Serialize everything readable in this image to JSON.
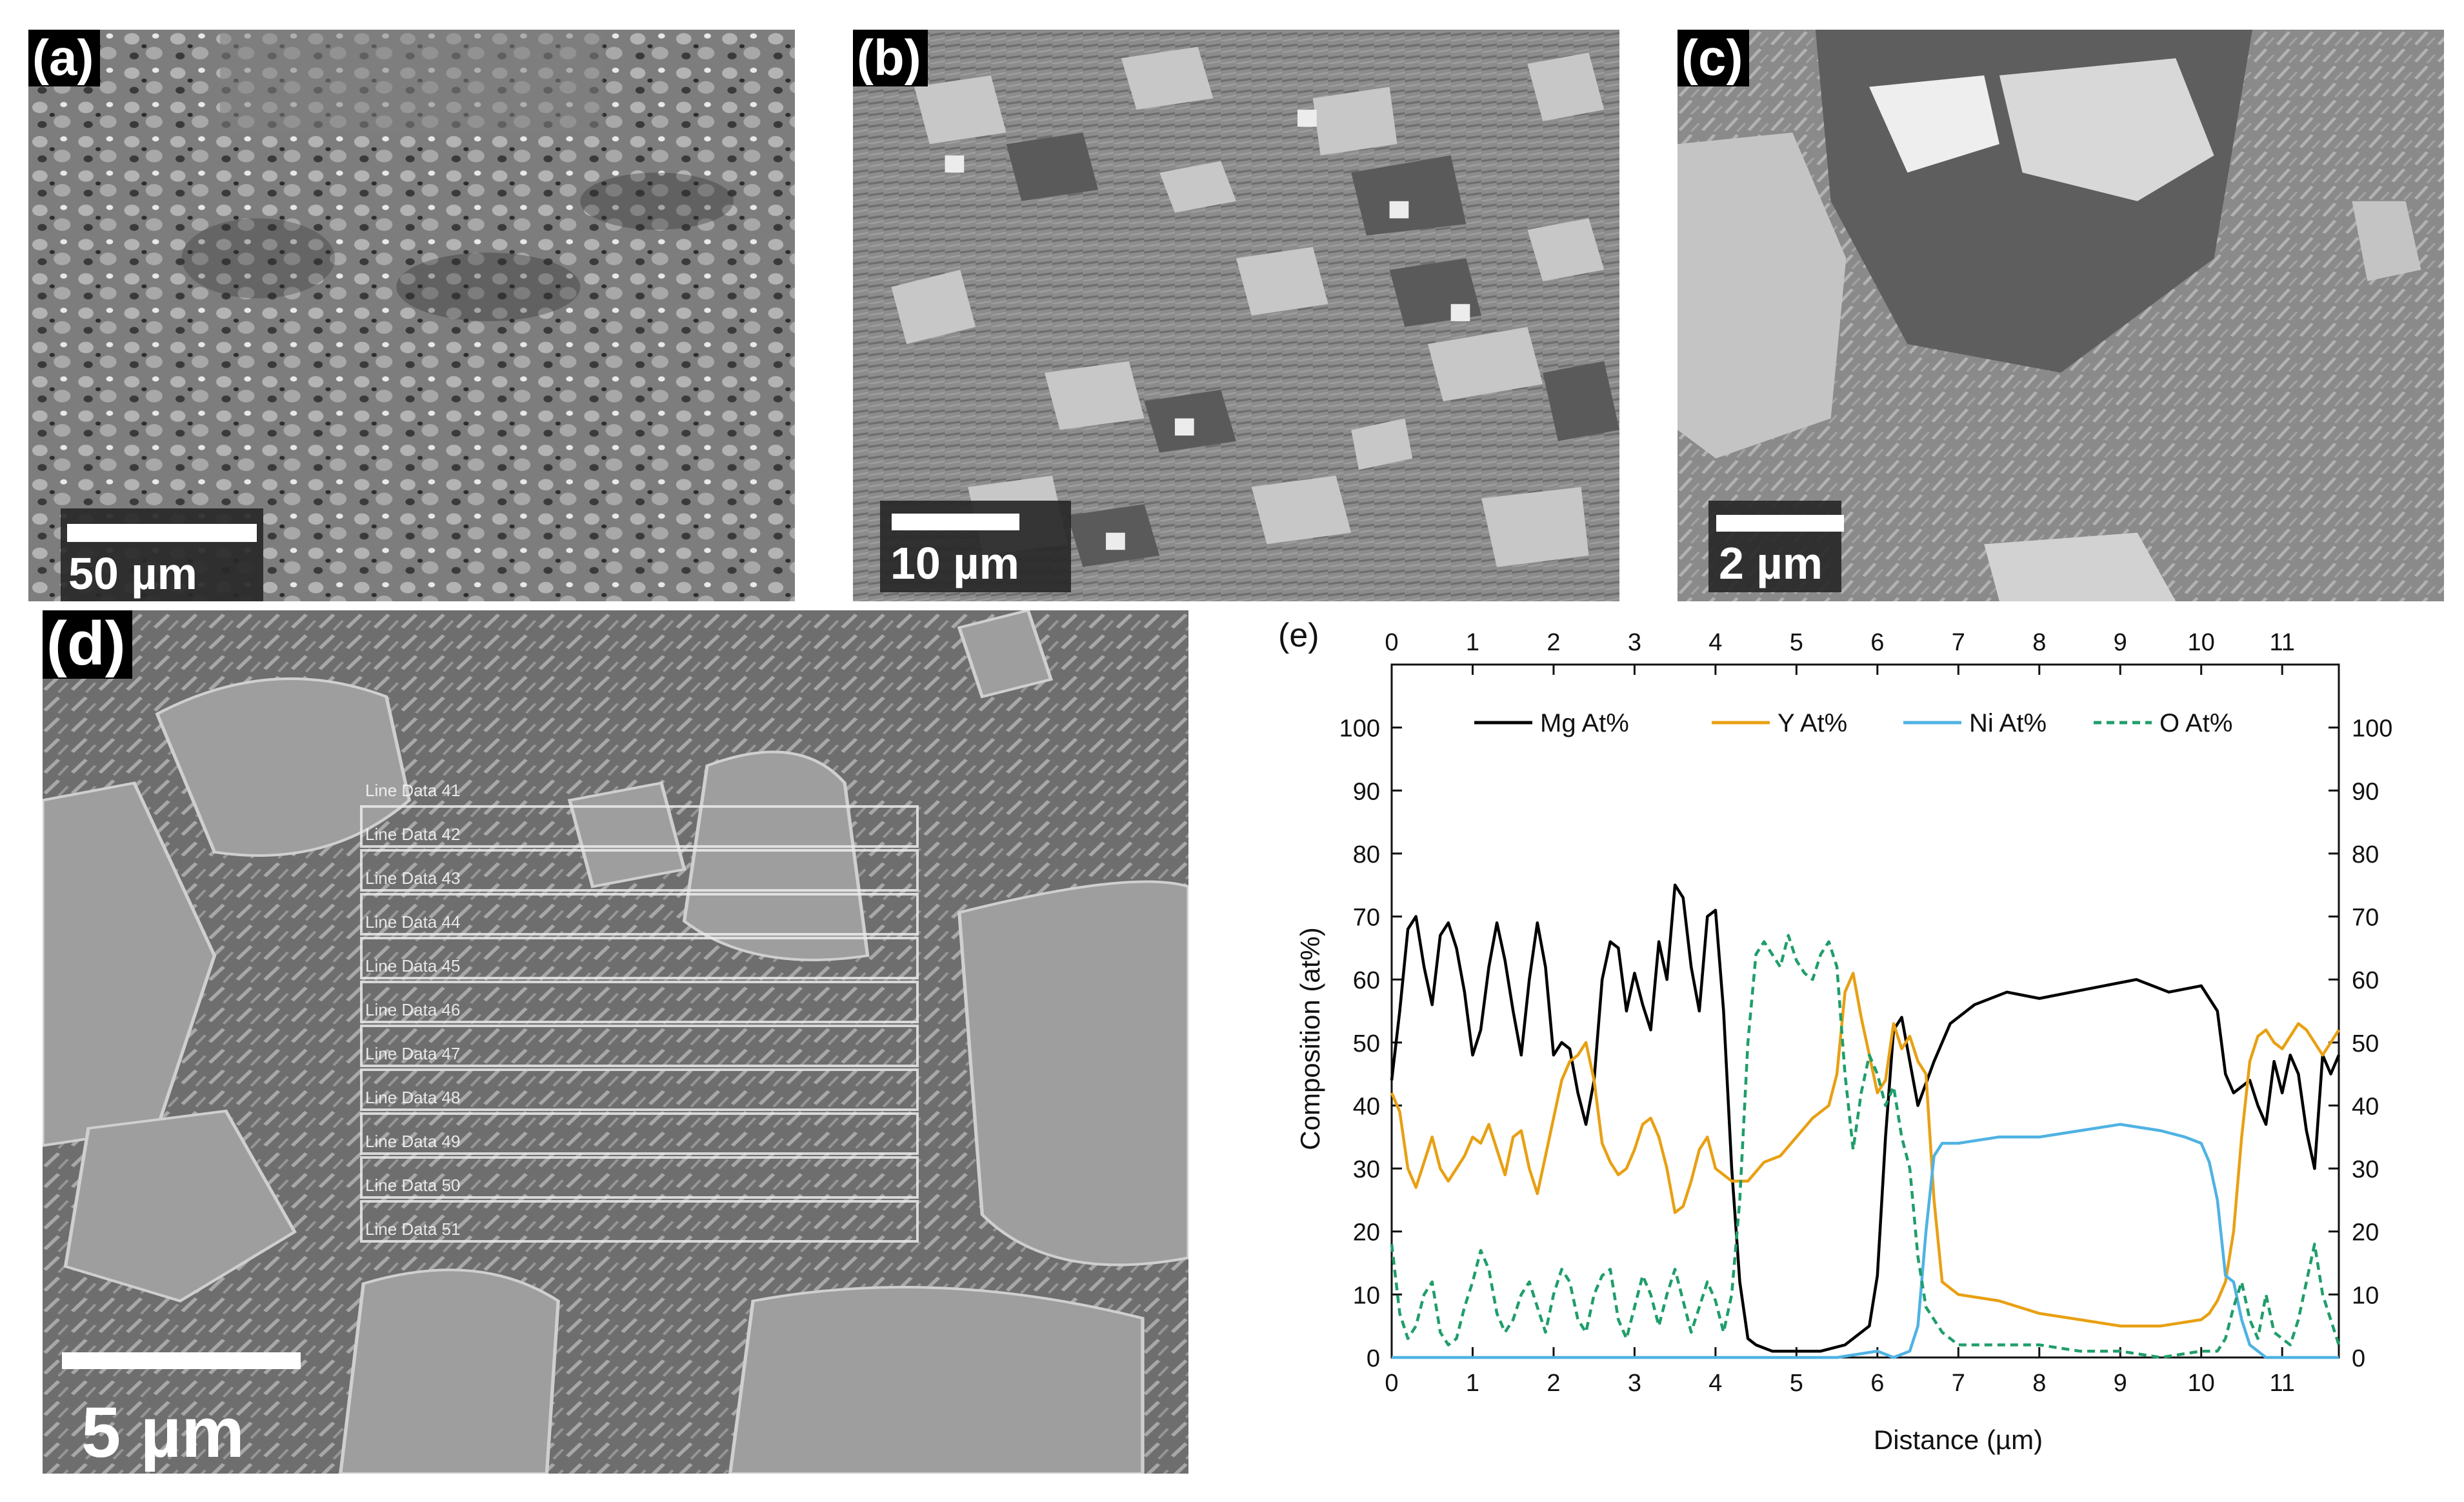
{
  "panels": {
    "a": {
      "label": "(a)",
      "scale": "50 µm"
    },
    "b": {
      "label": "(b)",
      "scale": "10 µm"
    },
    "c": {
      "label": "(c)",
      "scale": "2 µm"
    },
    "d": {
      "label": "(d)",
      "scale": "5 µm",
      "line_top_label": "Line Data 41",
      "line_labels": [
        "Line Data 42",
        "Line Data 43",
        "Line Data 44",
        "Line Data 45",
        "Line Data 46",
        "Line Data 47",
        "Line Data 48",
        "Line Data 49",
        "Line Data 50",
        "Line Data 51"
      ]
    },
    "e": {
      "label": "(e)"
    }
  },
  "colors": {
    "mg": "#000000",
    "y": "#e8a013",
    "ni": "#4fb2e3",
    "o": "#1f9e6a"
  },
  "chart_data": {
    "type": "line",
    "xlabel": "Distance (µm)",
    "ylabel": "Composition (at%)",
    "xlim": [
      0,
      11.7
    ],
    "ylim": [
      0,
      110
    ],
    "xticks": [
      0,
      1,
      2,
      3,
      4,
      5,
      6,
      7,
      8,
      9,
      10,
      11
    ],
    "yticks": [
      0,
      10,
      20,
      30,
      40,
      50,
      60,
      70,
      80,
      90,
      100
    ],
    "legend": "top",
    "grid": false,
    "series": [
      {
        "name": "Mg At%",
        "style": "solid",
        "x": [
          0,
          0.1,
          0.2,
          0.3,
          0.4,
          0.5,
          0.6,
          0.7,
          0.8,
          0.9,
          1.0,
          1.1,
          1.2,
          1.3,
          1.4,
          1.5,
          1.6,
          1.7,
          1.8,
          1.9,
          2.0,
          2.1,
          2.2,
          2.3,
          2.4,
          2.5,
          2.6,
          2.7,
          2.8,
          2.9,
          3.0,
          3.1,
          3.2,
          3.3,
          3.4,
          3.5,
          3.6,
          3.7,
          3.8,
          3.9,
          4.0,
          4.1,
          4.2,
          4.3,
          4.4,
          4.5,
          4.7,
          5.0,
          5.3,
          5.6,
          5.9,
          6.0,
          6.1,
          6.2,
          6.3,
          6.5,
          6.7,
          6.9,
          7.2,
          7.6,
          8.0,
          8.4,
          8.8,
          9.2,
          9.6,
          10.0,
          10.2,
          10.3,
          10.4,
          10.5,
          10.6,
          10.7,
          10.8,
          10.9,
          11.0,
          11.1,
          11.2,
          11.3,
          11.4,
          11.5,
          11.6,
          11.7
        ],
        "y": [
          44,
          55,
          68,
          70,
          62,
          56,
          67,
          69,
          65,
          58,
          48,
          52,
          62,
          69,
          63,
          55,
          48,
          60,
          69,
          62,
          48,
          50,
          49,
          42,
          37,
          44,
          60,
          66,
          65,
          55,
          61,
          56,
          52,
          66,
          60,
          75,
          73,
          62,
          55,
          70,
          71,
          55,
          30,
          12,
          3,
          2,
          1,
          1,
          1,
          2,
          5,
          13,
          35,
          52,
          54,
          40,
          47,
          53,
          56,
          58,
          57,
          58,
          59,
          60,
          58,
          59,
          55,
          45,
          42,
          43,
          44,
          40,
          37,
          47,
          42,
          48,
          45,
          36,
          30,
          48,
          45,
          48
        ]
      },
      {
        "name": "Y At%",
        "style": "solid",
        "x": [
          0,
          0.1,
          0.2,
          0.3,
          0.4,
          0.5,
          0.6,
          0.7,
          0.8,
          0.9,
          1.0,
          1.1,
          1.2,
          1.3,
          1.4,
          1.5,
          1.6,
          1.7,
          1.8,
          1.9,
          2.0,
          2.1,
          2.2,
          2.3,
          2.4,
          2.5,
          2.6,
          2.7,
          2.8,
          2.9,
          3.0,
          3.1,
          3.2,
          3.3,
          3.4,
          3.5,
          3.6,
          3.7,
          3.8,
          3.9,
          4.0,
          4.2,
          4.4,
          4.6,
          4.8,
          5.0,
          5.2,
          5.4,
          5.5,
          5.6,
          5.7,
          5.8,
          5.9,
          6.0,
          6.1,
          6.2,
          6.3,
          6.4,
          6.5,
          6.6,
          6.7,
          6.8,
          6.9,
          7.0,
          7.5,
          8.0,
          8.5,
          9.0,
          9.5,
          10.0,
          10.1,
          10.2,
          10.3,
          10.4,
          10.5,
          10.6,
          10.7,
          10.8,
          10.9,
          11.0,
          11.1,
          11.2,
          11.3,
          11.4,
          11.5,
          11.6,
          11.7
        ],
        "y": [
          42,
          39,
          30,
          27,
          31,
          35,
          30,
          28,
          30,
          32,
          35,
          34,
          37,
          33,
          29,
          35,
          36,
          30,
          26,
          32,
          38,
          44,
          47,
          48,
          50,
          44,
          34,
          31,
          29,
          30,
          33,
          37,
          38,
          35,
          30,
          23,
          24,
          28,
          33,
          35,
          30,
          28,
          28,
          31,
          32,
          35,
          38,
          40,
          45,
          58,
          61,
          54,
          48,
          42,
          44,
          53,
          49,
          51,
          47,
          45,
          25,
          12,
          11,
          10,
          9,
          7,
          6,
          5,
          5,
          6,
          7,
          9,
          12,
          20,
          35,
          47,
          51,
          52,
          50,
          49,
          51,
          53,
          52,
          50,
          48,
          50,
          52
        ]
      },
      {
        "name": "Ni At%",
        "style": "solid",
        "x": [
          0,
          0.5,
          1.0,
          1.5,
          2.0,
          2.5,
          3.0,
          3.5,
          4.0,
          4.5,
          5.0,
          5.5,
          6.0,
          6.2,
          6.4,
          6.5,
          6.6,
          6.7,
          6.8,
          7.0,
          7.5,
          8.0,
          8.5,
          9.0,
          9.5,
          9.8,
          10.0,
          10.1,
          10.2,
          10.3,
          10.4,
          10.5,
          10.6,
          10.7,
          10.8,
          11.0,
          11.5,
          11.7
        ],
        "y": [
          0,
          0,
          0,
          0,
          0,
          0,
          0,
          0,
          0,
          0,
          0,
          0,
          1,
          0,
          1,
          5,
          20,
          32,
          34,
          34,
          35,
          35,
          36,
          37,
          36,
          35,
          34,
          31,
          25,
          13,
          12,
          6,
          2,
          1,
          0,
          0,
          0,
          0
        ]
      },
      {
        "name": "O At%",
        "style": "dashed",
        "x": [
          0,
          0.1,
          0.2,
          0.3,
          0.4,
          0.5,
          0.6,
          0.7,
          0.8,
          0.9,
          1.0,
          1.1,
          1.2,
          1.3,
          1.4,
          1.5,
          1.6,
          1.7,
          1.8,
          1.9,
          2.0,
          2.1,
          2.2,
          2.3,
          2.4,
          2.5,
          2.6,
          2.7,
          2.8,
          2.9,
          3.0,
          3.1,
          3.2,
          3.3,
          3.4,
          3.5,
          3.6,
          3.7,
          3.8,
          3.9,
          4.0,
          4.1,
          4.2,
          4.3,
          4.4,
          4.5,
          4.6,
          4.7,
          4.8,
          4.9,
          5.0,
          5.1,
          5.2,
          5.3,
          5.4,
          5.5,
          5.6,
          5.7,
          5.8,
          5.9,
          6.0,
          6.1,
          6.2,
          6.3,
          6.4,
          6.5,
          6.6,
          6.8,
          7.0,
          7.5,
          8.0,
          8.5,
          9.0,
          9.5,
          10.0,
          10.2,
          10.3,
          10.4,
          10.5,
          10.6,
          10.7,
          10.8,
          10.9,
          11.0,
          11.1,
          11.2,
          11.3,
          11.4,
          11.5,
          11.7
        ],
        "y": [
          18,
          7,
          3,
          5,
          10,
          12,
          4,
          2,
          3,
          8,
          12,
          17,
          14,
          7,
          4,
          6,
          10,
          12,
          8,
          4,
          10,
          14,
          12,
          6,
          4,
          10,
          13,
          14,
          6,
          3,
          8,
          13,
          10,
          5,
          10,
          14,
          9,
          4,
          8,
          12,
          9,
          4,
          10,
          25,
          50,
          64,
          66,
          64,
          62,
          67,
          63,
          61,
          60,
          64,
          66,
          62,
          45,
          33,
          42,
          48,
          45,
          40,
          43,
          35,
          30,
          16,
          8,
          4,
          2,
          2,
          2,
          1,
          1,
          0,
          1,
          1,
          3,
          8,
          12,
          6,
          3,
          10,
          4,
          3,
          2,
          6,
          12,
          18,
          10,
          2
        ]
      }
    ]
  }
}
